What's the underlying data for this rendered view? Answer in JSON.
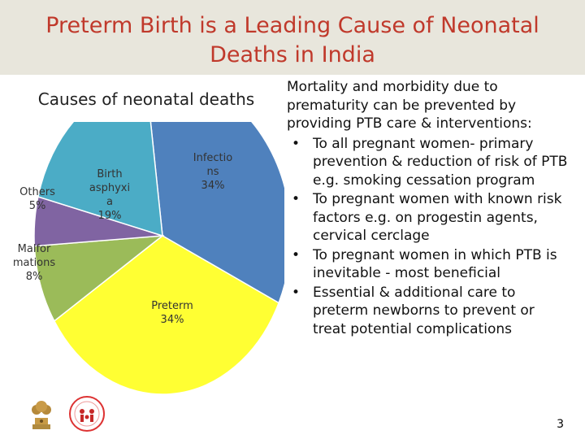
{
  "slide": {
    "title": "Preterm Birth is a Leading Cause of Neonatal Deaths in India",
    "page_number": "3"
  },
  "chart_data": {
    "type": "pie",
    "title": "Causes of neonatal deaths",
    "slices": [
      {
        "label": "Infectio\nns",
        "value": 34,
        "value_label": "34%",
        "color": "#4f81bd"
      },
      {
        "label": "Preterm",
        "value": 34,
        "value_label": "34%",
        "color": "#ffff33"
      },
      {
        "label": "Malfor\nmations",
        "value": 8,
        "value_label": "8%",
        "color": "#9bbb59"
      },
      {
        "label": "Others",
        "value": 5,
        "value_label": "5%",
        "color": "#8064a2"
      },
      {
        "label": "Birth\nasphyxi\na",
        "value": 19,
        "value_label": "19%",
        "color": "#4bacc6"
      }
    ]
  },
  "text_panel": {
    "intro": "Mortality and morbidity due to prematurity can be prevented by providing PTB care & interventions:",
    "bullets": [
      "To all pregnant women- primary prevention & reduction of risk of PTB e.g. smoking cessation program",
      "To pregnant women with known risk factors e.g. on progestin agents, cervical cerclage",
      "To pregnant women in which PTB is inevitable - most beneficial",
      "Essential & additional care to preterm newborns to prevent or treat potential complications"
    ]
  },
  "logos": [
    {
      "icon": "national-emblem-icon"
    },
    {
      "icon": "nhm-logo-icon"
    }
  ]
}
